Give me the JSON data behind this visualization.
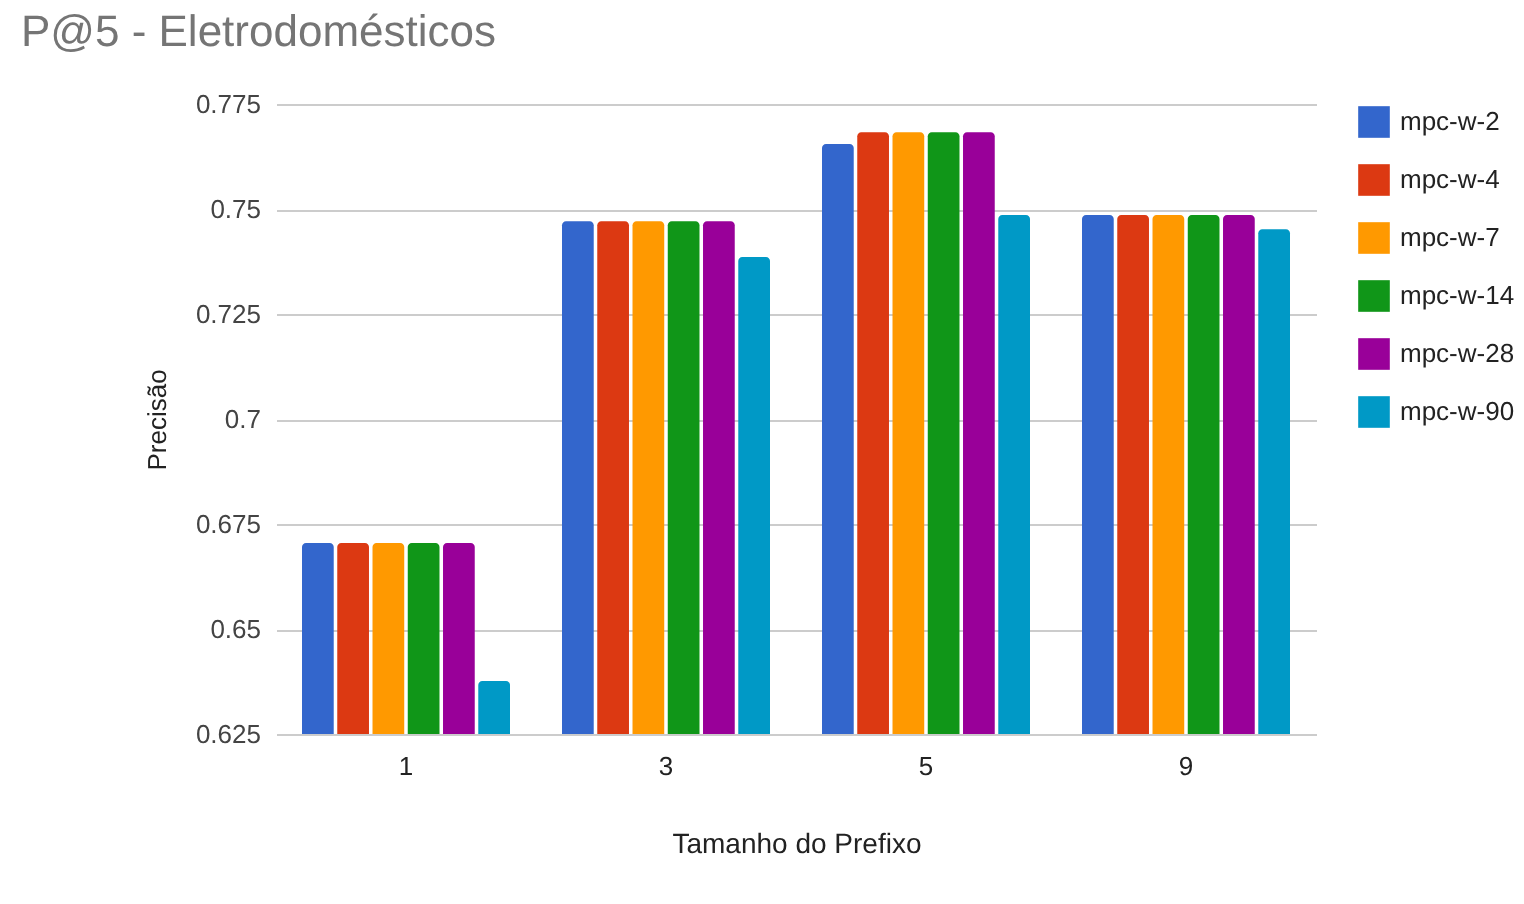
{
  "chart_data": {
    "type": "bar",
    "title": "P@5 - Eletrodomésticos",
    "xlabel": "Tamanho do Prefixo",
    "ylabel": "Precisão",
    "categories": [
      "1",
      "3",
      "5",
      "9"
    ],
    "series": [
      {
        "name": "mpc-w-2",
        "color": "#3366cc",
        "values": [
          0.6705,
          0.7471,
          0.7655,
          0.7486
        ]
      },
      {
        "name": "mpc-w-4",
        "color": "#dc3912",
        "values": [
          0.6705,
          0.7471,
          0.7683,
          0.7486
        ]
      },
      {
        "name": "mpc-w-7",
        "color": "#ff9900",
        "values": [
          0.6705,
          0.7471,
          0.7683,
          0.7486
        ]
      },
      {
        "name": "mpc-w-14",
        "color": "#109618",
        "values": [
          0.6705,
          0.7471,
          0.7683,
          0.7486
        ]
      },
      {
        "name": "mpc-w-28",
        "color": "#990099",
        "values": [
          0.6705,
          0.7471,
          0.7683,
          0.7486
        ]
      },
      {
        "name": "mpc-w-90",
        "color": "#0099c6",
        "values": [
          0.6376,
          0.7386,
          0.7486,
          0.7452
        ]
      }
    ],
    "ylim": [
      0.625,
      0.775
    ],
    "yticks": [
      0.625,
      0.65,
      0.675,
      0.7,
      0.725,
      0.75,
      0.775
    ],
    "grid": "y",
    "legend": "right"
  }
}
